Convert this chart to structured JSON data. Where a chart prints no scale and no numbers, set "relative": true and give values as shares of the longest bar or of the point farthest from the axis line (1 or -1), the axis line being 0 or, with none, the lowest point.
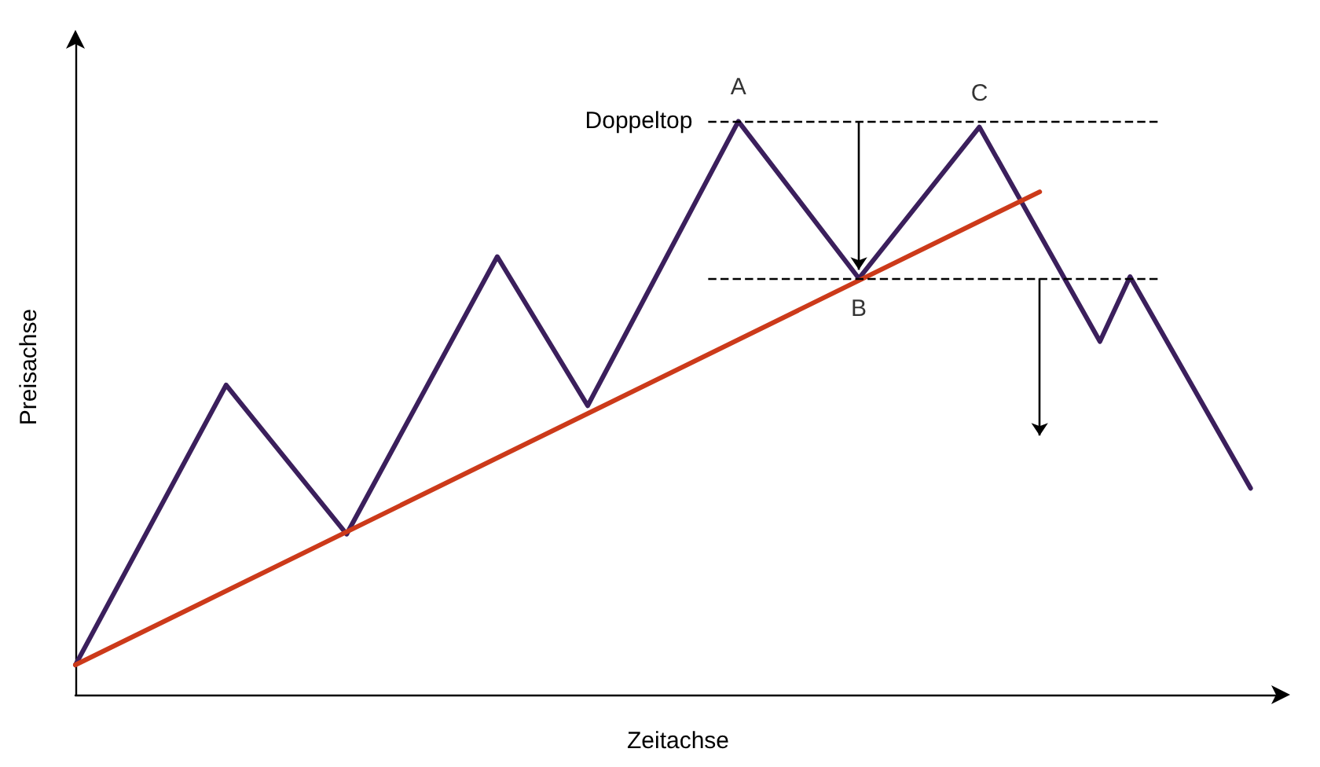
{
  "chart_data": {
    "type": "line",
    "relative": true,
    "xlabel": "Zeitachse",
    "ylabel": "Preisachse",
    "marker": "none",
    "line_style": "solid",
    "grid": false,
    "categories": [
      null,
      null,
      null,
      null,
      null,
      null,
      null,
      null,
      null,
      null,
      null,
      null,
      null,
      null,
      null,
      null,
      null,
      null,
      null,
      null,
      null,
      null,
      null,
      null,
      null,
      null,
      null,
      null,
      null,
      null,
      null,
      null,
      null,
      null,
      null,
      null,
      null,
      null,
      null,
      null,
      null
    ],
    "series": [
      {
        "color": "#3b1f5c",
        "values": [
          0.052,
          null,
          null,
          null,
          null,
          0.54,
          null,
          null,
          null,
          0.28,
          null,
          null,
          null,
          null,
          0.764,
          null,
          null,
          0.504,
          null,
          null,
          null,
          null,
          1,
          null,
          null,
          null,
          0.726,
          null,
          null,
          null,
          0.99,
          null,
          null,
          null,
          0.616,
          0.729,
          null,
          null,
          null,
          0.36,
          null
        ]
      },
      {
        "color": "#cc3a1a",
        "values": [
          0.052,
          null,
          null,
          null,
          null,
          null,
          null,
          null,
          null,
          null,
          null,
          null,
          null,
          null,
          null,
          null,
          null,
          null,
          null,
          null,
          null,
          null,
          null,
          null,
          null,
          null,
          null,
          null,
          null,
          null,
          null,
          null,
          0.877,
          null,
          null,
          null,
          null,
          null,
          null,
          null,
          null
        ]
      }
    ],
    "ref_lines": [
      {
        "axis": "y",
        "value": 1,
        "label": "Doppeltop",
        "color": "#000000",
        "line_style": "dashed"
      },
      {
        "axis": "y",
        "value": 0.726,
        "label": null,
        "color": "#000000",
        "line_style": "dashed"
      }
    ],
    "annotations": [
      {
        "text": "A",
        "y": 1
      },
      {
        "text": "B",
        "y": 0.726
      },
      {
        "text": "C",
        "y": 0.99
      }
    ]
  }
}
